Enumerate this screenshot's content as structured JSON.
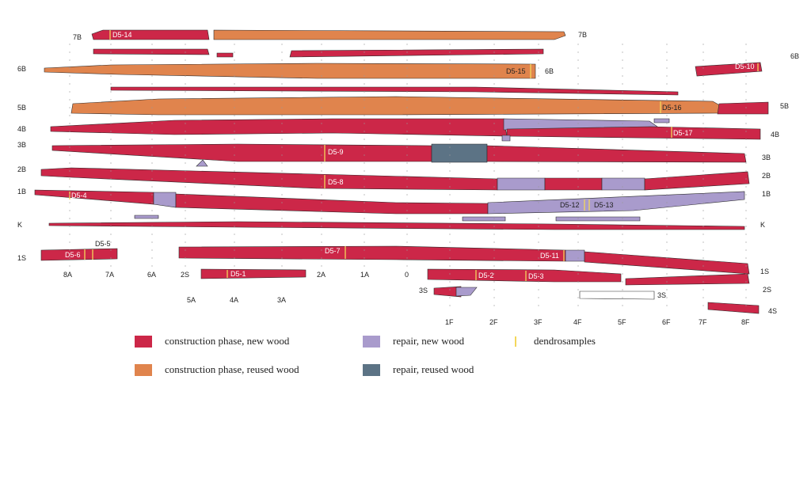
{
  "colors": {
    "new_wood": "#cc2748",
    "reused_wood": "#e0844d",
    "repair_new": "#a99bcc",
    "repair_reused": "#5c7385",
    "dendro": "#f3d75a",
    "outline": "#2b2b2b"
  },
  "row_labels": {
    "7B_left": "7B",
    "7B_right": "7B",
    "6B_left": "6B",
    "6B_mid": "6B",
    "6B_right": "6B",
    "5B_left": "5B",
    "5B_right": "5B",
    "4B_left": "4B",
    "4B_right": "4B",
    "3B_left": "3B",
    "3B_right": "3B",
    "2B_left": "2B",
    "2B_right": "2B",
    "1B_left": "1B",
    "1B_right": "1B",
    "K_left": "K",
    "K_right": "K",
    "1S_left": "1S",
    "1S_right": "1S",
    "2S_mid": "2S",
    "2S_right": "2S",
    "3S_left": "3S",
    "3S_right": "3S",
    "4S_right": "4S"
  },
  "frames_top": [
    "8A",
    "7A",
    "6A",
    "2A",
    "1A",
    "0"
  ],
  "frames_low": [
    "5A",
    "4A",
    "3A"
  ],
  "frames_f": [
    "1F",
    "2F",
    "3F",
    "4F",
    "5F",
    "6F",
    "7F",
    "8F"
  ],
  "samples": {
    "d5_1": "D5-1",
    "d5_2": "D5-2",
    "d5_3": "D5-3",
    "d5_4": "D5-4",
    "d5_5": "D5-5",
    "d5_6": "D5-6",
    "d5_7": "D5-7",
    "d5_8": "D5-8",
    "d5_9": "D5-9",
    "d5_10": "D5-10",
    "d5_11": "D5-11",
    "d5_12": "D5-12",
    "d5_13": "D5-13",
    "d5_14": "D5-14",
    "d5_15": "D5-15",
    "d5_16": "D5-16",
    "d5_17": "D5-17"
  },
  "legend": {
    "new_wood": "construction phase, new wood",
    "reused_wood": "construction phase, reused wood",
    "repair_new": "repair, new wood",
    "repair_reused": "repair, reused wood",
    "dendro": "dendrosamples"
  }
}
